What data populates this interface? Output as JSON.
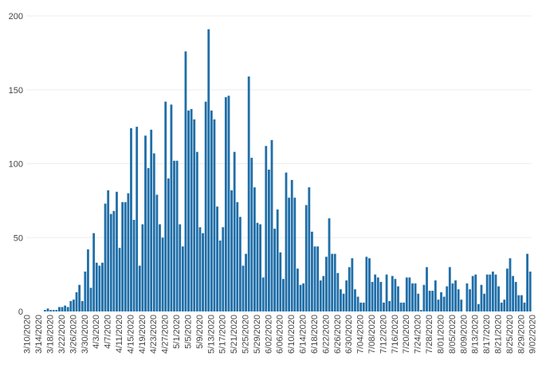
{
  "chart_data": {
    "type": "bar",
    "title": "",
    "xlabel": "",
    "ylabel": "",
    "ylim": [
      0,
      200
    ],
    "yticks": [
      0,
      50,
      100,
      150,
      200
    ],
    "grid": true,
    "bar_color": "#1f6ea8",
    "grid_color": "#eeeeee",
    "start_date": "2020-03-10",
    "tick_labels": [
      "3/10/2020",
      "3/14/2020",
      "3/18/2020",
      "3/22/2020",
      "3/26/2020",
      "3/30/2020",
      "4/3/2020",
      "4/7/2020",
      "4/11/2020",
      "4/15/2020",
      "4/19/2020",
      "4/23/2020",
      "4/27/2020",
      "5/1/2020",
      "5/5/2020",
      "5/9/2020",
      "5/13/2020",
      "5/17/2020",
      "5/21/2020",
      "5/25/2020",
      "5/29/2020",
      "6/02/2020",
      "6/06/2020",
      "6/10/2020",
      "6/14/2020",
      "6/18/2020",
      "6/22/2020",
      "6/26/2020",
      "6/30/2020",
      "7/04/2020",
      "7/08/2020",
      "7/12/2020",
      "7/16/2020",
      "7/20/2020",
      "7/24/2020",
      "7/28/2020",
      "8/01/2020",
      "8/05/2020",
      "8/09/2020",
      "8/13/2020",
      "8/17/2020",
      "8/21/2020",
      "8/25/2020",
      "8/29/2020",
      "9/02/2020"
    ],
    "values": [
      0,
      0,
      0,
      0,
      0,
      0,
      1,
      2,
      1,
      1,
      1,
      3,
      3,
      4,
      3,
      7,
      8,
      13,
      18,
      7,
      27,
      42,
      16,
      53,
      33,
      31,
      33,
      73,
      82,
      66,
      68,
      81,
      43,
      74,
      74,
      80,
      124,
      62,
      125,
      31,
      59,
      119,
      97,
      123,
      107,
      79,
      59,
      50,
      142,
      90,
      140,
      102,
      102,
      59,
      44,
      176,
      136,
      137,
      130,
      108,
      57,
      53,
      142,
      191,
      136,
      130,
      71,
      48,
      57,
      145,
      146,
      82,
      108,
      74,
      64,
      31,
      39,
      159,
      104,
      84,
      60,
      59,
      23,
      112,
      96,
      116,
      56,
      69,
      40,
      22,
      94,
      77,
      89,
      77,
      29,
      18,
      19,
      72,
      84,
      54,
      44,
      44,
      21,
      24,
      37,
      63,
      39,
      39,
      26,
      15,
      12,
      21,
      30,
      36,
      15,
      10,
      6,
      6,
      37,
      36,
      20,
      25,
      23,
      20,
      6,
      25,
      7,
      24,
      22,
      17,
      6,
      6,
      23,
      23,
      19,
      19,
      12,
      1,
      18,
      30,
      14,
      14,
      21,
      8,
      13,
      10,
      17,
      30,
      19,
      21,
      15,
      8,
      0,
      19,
      15,
      24,
      25,
      5,
      18,
      12,
      25,
      25,
      27,
      25,
      17,
      6,
      8,
      29,
      36,
      24,
      20,
      11,
      11,
      6,
      39,
      27
    ]
  }
}
